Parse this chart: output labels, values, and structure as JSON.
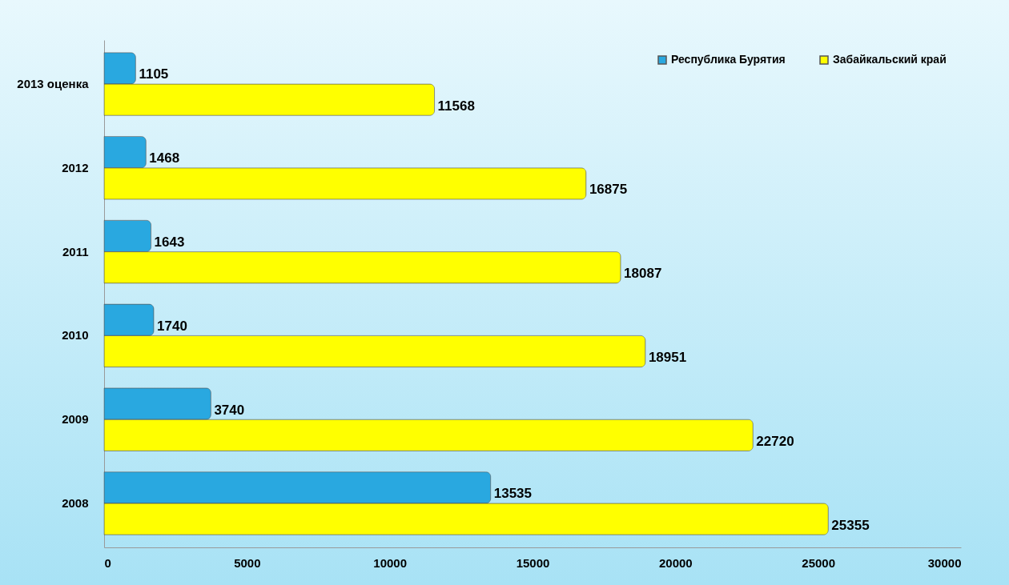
{
  "chart_data": {
    "type": "bar",
    "orientation": "horizontal",
    "categories": [
      "2013 оценка",
      "2012",
      "2011",
      "2010",
      "2009",
      "2008"
    ],
    "series": [
      {
        "name": "Республика Бурятия",
        "color": "#29a8e0",
        "values": [
          1105,
          1468,
          1643,
          1740,
          3740,
          13535
        ]
      },
      {
        "name": "Забайкальский край",
        "color": "#ffff00",
        "values": [
          11568,
          16875,
          18087,
          18951,
          22720,
          25355
        ]
      }
    ],
    "xlim": [
      0,
      30000
    ],
    "xticks": [
      0,
      5000,
      10000,
      15000,
      20000,
      25000,
      30000
    ],
    "data_labels": true,
    "legend": "top right"
  }
}
